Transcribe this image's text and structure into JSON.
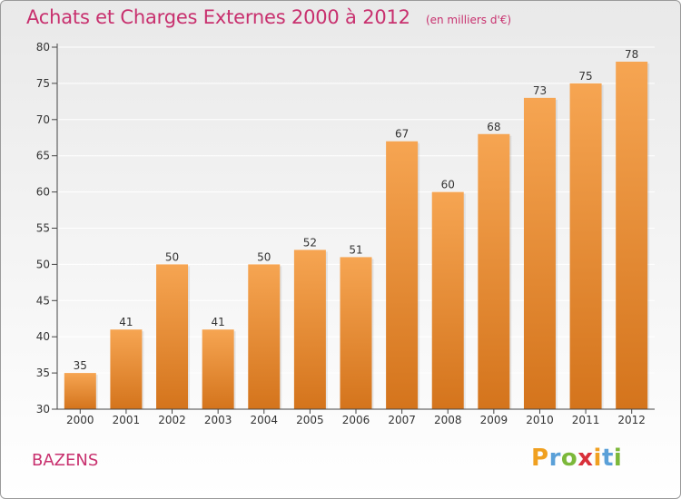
{
  "title": "Achats et Charges Externes 2000 à 2012",
  "unit_note": "(en milliers d'€)",
  "footer_name": "BAZENS",
  "brand": {
    "letters": [
      "P",
      "r",
      "o",
      "x",
      "i",
      "t",
      "i"
    ],
    "colors": [
      "#f0a020",
      "#5aa0d8",
      "#7cb83a",
      "#d8303a",
      "#f0a020",
      "#5aa0d8",
      "#7cb83a"
    ]
  },
  "colors": {
    "title": "#c8306e",
    "bar_top": "#f6a552",
    "bar_bottom": "#d4741c",
    "axis": "#444444",
    "grid": "#ffffff"
  },
  "chart_data": {
    "type": "bar",
    "categories": [
      "2000",
      "2001",
      "2002",
      "2003",
      "2004",
      "2005",
      "2006",
      "2007",
      "2008",
      "2009",
      "2010",
      "2011",
      "2012"
    ],
    "values": [
      35,
      41,
      50,
      41,
      50,
      52,
      51,
      67,
      60,
      68,
      73,
      75,
      78
    ],
    "ylim": [
      30,
      80
    ],
    "yticks": [
      30,
      35,
      40,
      45,
      50,
      55,
      60,
      65,
      70,
      75,
      80
    ],
    "data_labels": [
      "35",
      "41",
      "50",
      "41",
      "50",
      "52",
      "51",
      "67",
      "60",
      "68",
      "73",
      "75",
      "78"
    ],
    "grid": true
  }
}
